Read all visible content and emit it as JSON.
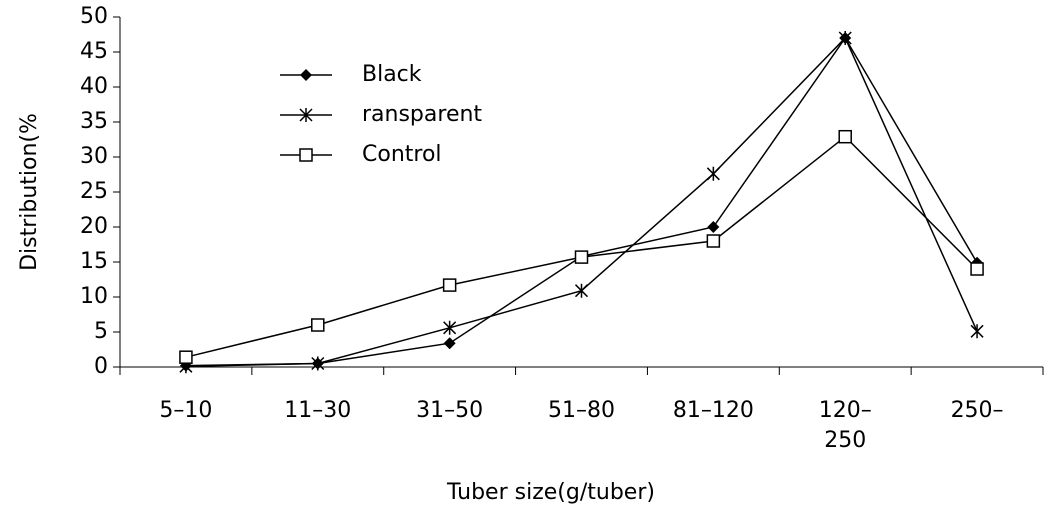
{
  "chart_data": {
    "type": "line",
    "x_label": "Tuber size(g/tuber)",
    "y_label": "Distribution(%",
    "categories": [
      "5–10",
      "11–30",
      "31–50",
      "51–80",
      "81–120",
      "120–\n250",
      "250–"
    ],
    "series": [
      {
        "name": "Black",
        "color": "#000000",
        "marker": "diamond",
        "values": [
          0.2,
          0.5,
          3.4,
          15.8,
          20,
          47,
          14.9
        ]
      },
      {
        "name": "ransparent",
        "color": "#000000",
        "marker": "asterisk",
        "values": [
          0.1,
          0.5,
          5.6,
          10.9,
          27.6,
          47,
          5.1
        ]
      },
      {
        "name": "Control",
        "color": "#000000",
        "marker": "square",
        "values": [
          1.4,
          6,
          11.7,
          15.7,
          18,
          32.9,
          14
        ]
      }
    ],
    "ylim": [
      0,
      50
    ],
    "yticks": [
      0,
      5,
      10,
      15,
      20,
      25,
      30,
      35,
      40,
      45,
      50
    ],
    "grid": false,
    "legend": "upper left"
  }
}
